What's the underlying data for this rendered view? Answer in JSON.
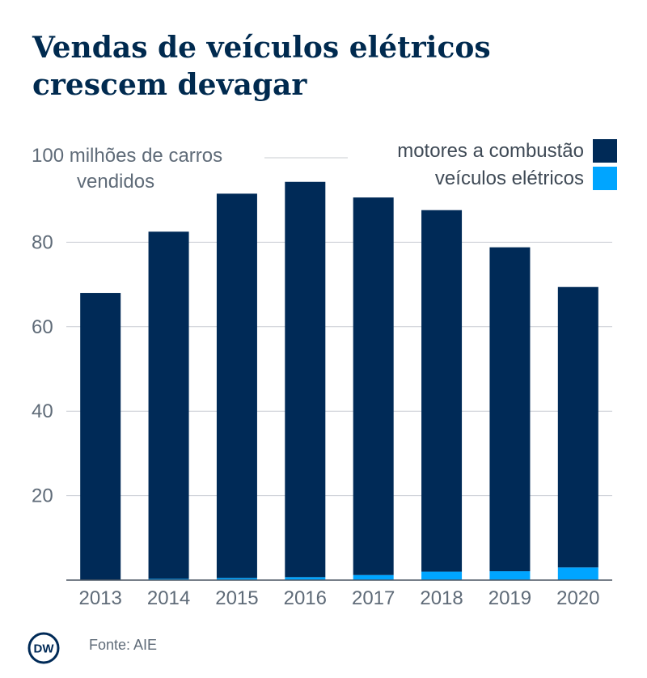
{
  "title": "Vendas de veículos elétricos crescem devagar",
  "source": "Fonte: AIE",
  "logo_text": "DW",
  "colors": {
    "combustion": "#002a57",
    "electric": "#00a5ff",
    "grid": "#c8ccd2",
    "text": "#5f6b78",
    "title": "#002a4f"
  },
  "chart_data": {
    "type": "bar",
    "stacked": true,
    "categories": [
      "2013",
      "2014",
      "2015",
      "2016",
      "2017",
      "2018",
      "2019",
      "2020"
    ],
    "series": [
      {
        "name": "veículos elétricos",
        "values": [
          0.1,
          0.3,
          0.5,
          0.7,
          1.2,
          2.0,
          2.1,
          3.0
        ]
      },
      {
        "name": "motores a combustão",
        "values": [
          67.9,
          82.2,
          91.0,
          93.6,
          89.4,
          85.6,
          76.7,
          66.4
        ]
      }
    ],
    "ylabel": "100 milhões de carros vendidos",
    "ylabel_lines": [
      "100 milhões de carros",
      "vendidos"
    ],
    "yticks": [
      20,
      40,
      60,
      80
    ],
    "ylim": [
      0,
      100
    ],
    "grid": true,
    "legend_position": "top-right",
    "legend": [
      "motores a combustão",
      "veículos elétricos"
    ]
  }
}
